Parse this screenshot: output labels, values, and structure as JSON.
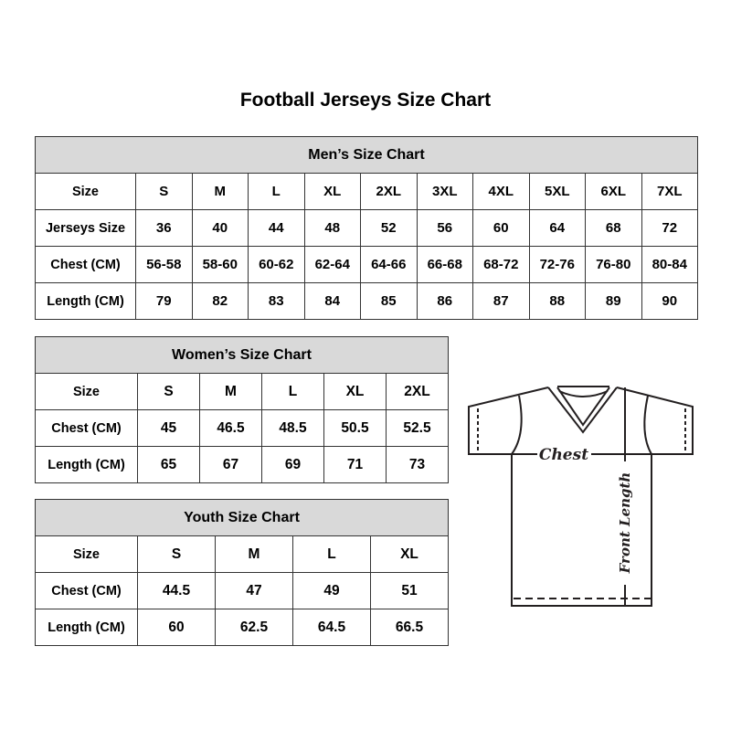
{
  "title": "Football Jerseys Size Chart",
  "men": {
    "title": "Men’s Size Chart",
    "rows": [
      {
        "label": "Size",
        "values": [
          "S",
          "M",
          "L",
          "XL",
          "2XL",
          "3XL",
          "4XL",
          "5XL",
          "6XL",
          "7XL"
        ]
      },
      {
        "label": "Jerseys Size",
        "values": [
          "36",
          "40",
          "44",
          "48",
          "52",
          "56",
          "60",
          "64",
          "68",
          "72"
        ]
      },
      {
        "label": "Chest (CM)",
        "values": [
          "56-58",
          "58-60",
          "60-62",
          "62-64",
          "64-66",
          "66-68",
          "68-72",
          "72-76",
          "76-80",
          "80-84"
        ]
      },
      {
        "label": "Length (CM)",
        "values": [
          "79",
          "82",
          "83",
          "84",
          "85",
          "86",
          "87",
          "88",
          "89",
          "90"
        ]
      }
    ]
  },
  "women": {
    "title": "Women’s Size Chart",
    "rows": [
      {
        "label": "Size",
        "values": [
          "S",
          "M",
          "L",
          "XL",
          "2XL"
        ]
      },
      {
        "label": "Chest (CM)",
        "values": [
          "45",
          "46.5",
          "48.5",
          "50.5",
          "52.5"
        ]
      },
      {
        "label": "Length (CM)",
        "values": [
          "65",
          "67",
          "69",
          "71",
          "73"
        ]
      }
    ]
  },
  "youth": {
    "title": "Youth Size Chart",
    "rows": [
      {
        "label": "Size",
        "values": [
          "S",
          "M",
          "L",
          "XL"
        ]
      },
      {
        "label": "Chest (CM)",
        "values": [
          "44.5",
          "47",
          "49",
          "51"
        ]
      },
      {
        "label": "Length (CM)",
        "values": [
          "60",
          "62.5",
          "64.5",
          "66.5"
        ]
      }
    ]
  },
  "diagram": {
    "chest": "Chest",
    "length": "Front Length"
  }
}
